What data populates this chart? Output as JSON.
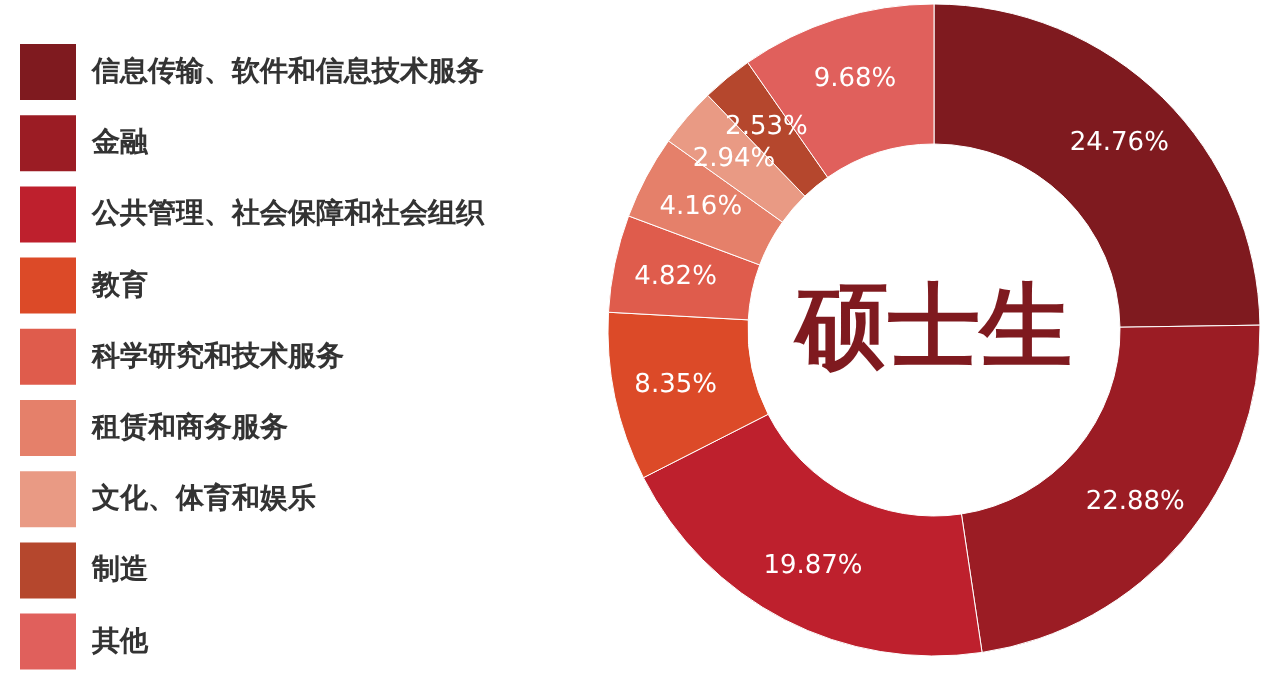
{
  "chart_data": {
    "type": "donut",
    "title": "硕士生",
    "categories": [
      "信息传输、软件和信息技术服务",
      "金融",
      "公共管理、社会保障和社会组织",
      "教育",
      "科学研究和技术服务",
      "租赁和商务服务",
      "文化、体育和娱乐",
      "制造",
      "其他"
    ],
    "values": [
      24.76,
      22.88,
      19.87,
      8.35,
      4.82,
      4.16,
      2.94,
      2.53,
      9.68
    ],
    "value_labels": [
      "24.76%",
      "22.88%",
      "19.87%",
      "8.35%",
      "4.82%",
      "4.16%",
      "2.94%",
      "2.53%",
      "9.68%"
    ],
    "colors": [
      "#7f1a1f",
      "#9b1c24",
      "#be202d",
      "#dc4a28",
      "#df5c4c",
      "#e5806a",
      "#e99a84",
      "#b5472d",
      "#e0605c"
    ],
    "legend": "left"
  }
}
